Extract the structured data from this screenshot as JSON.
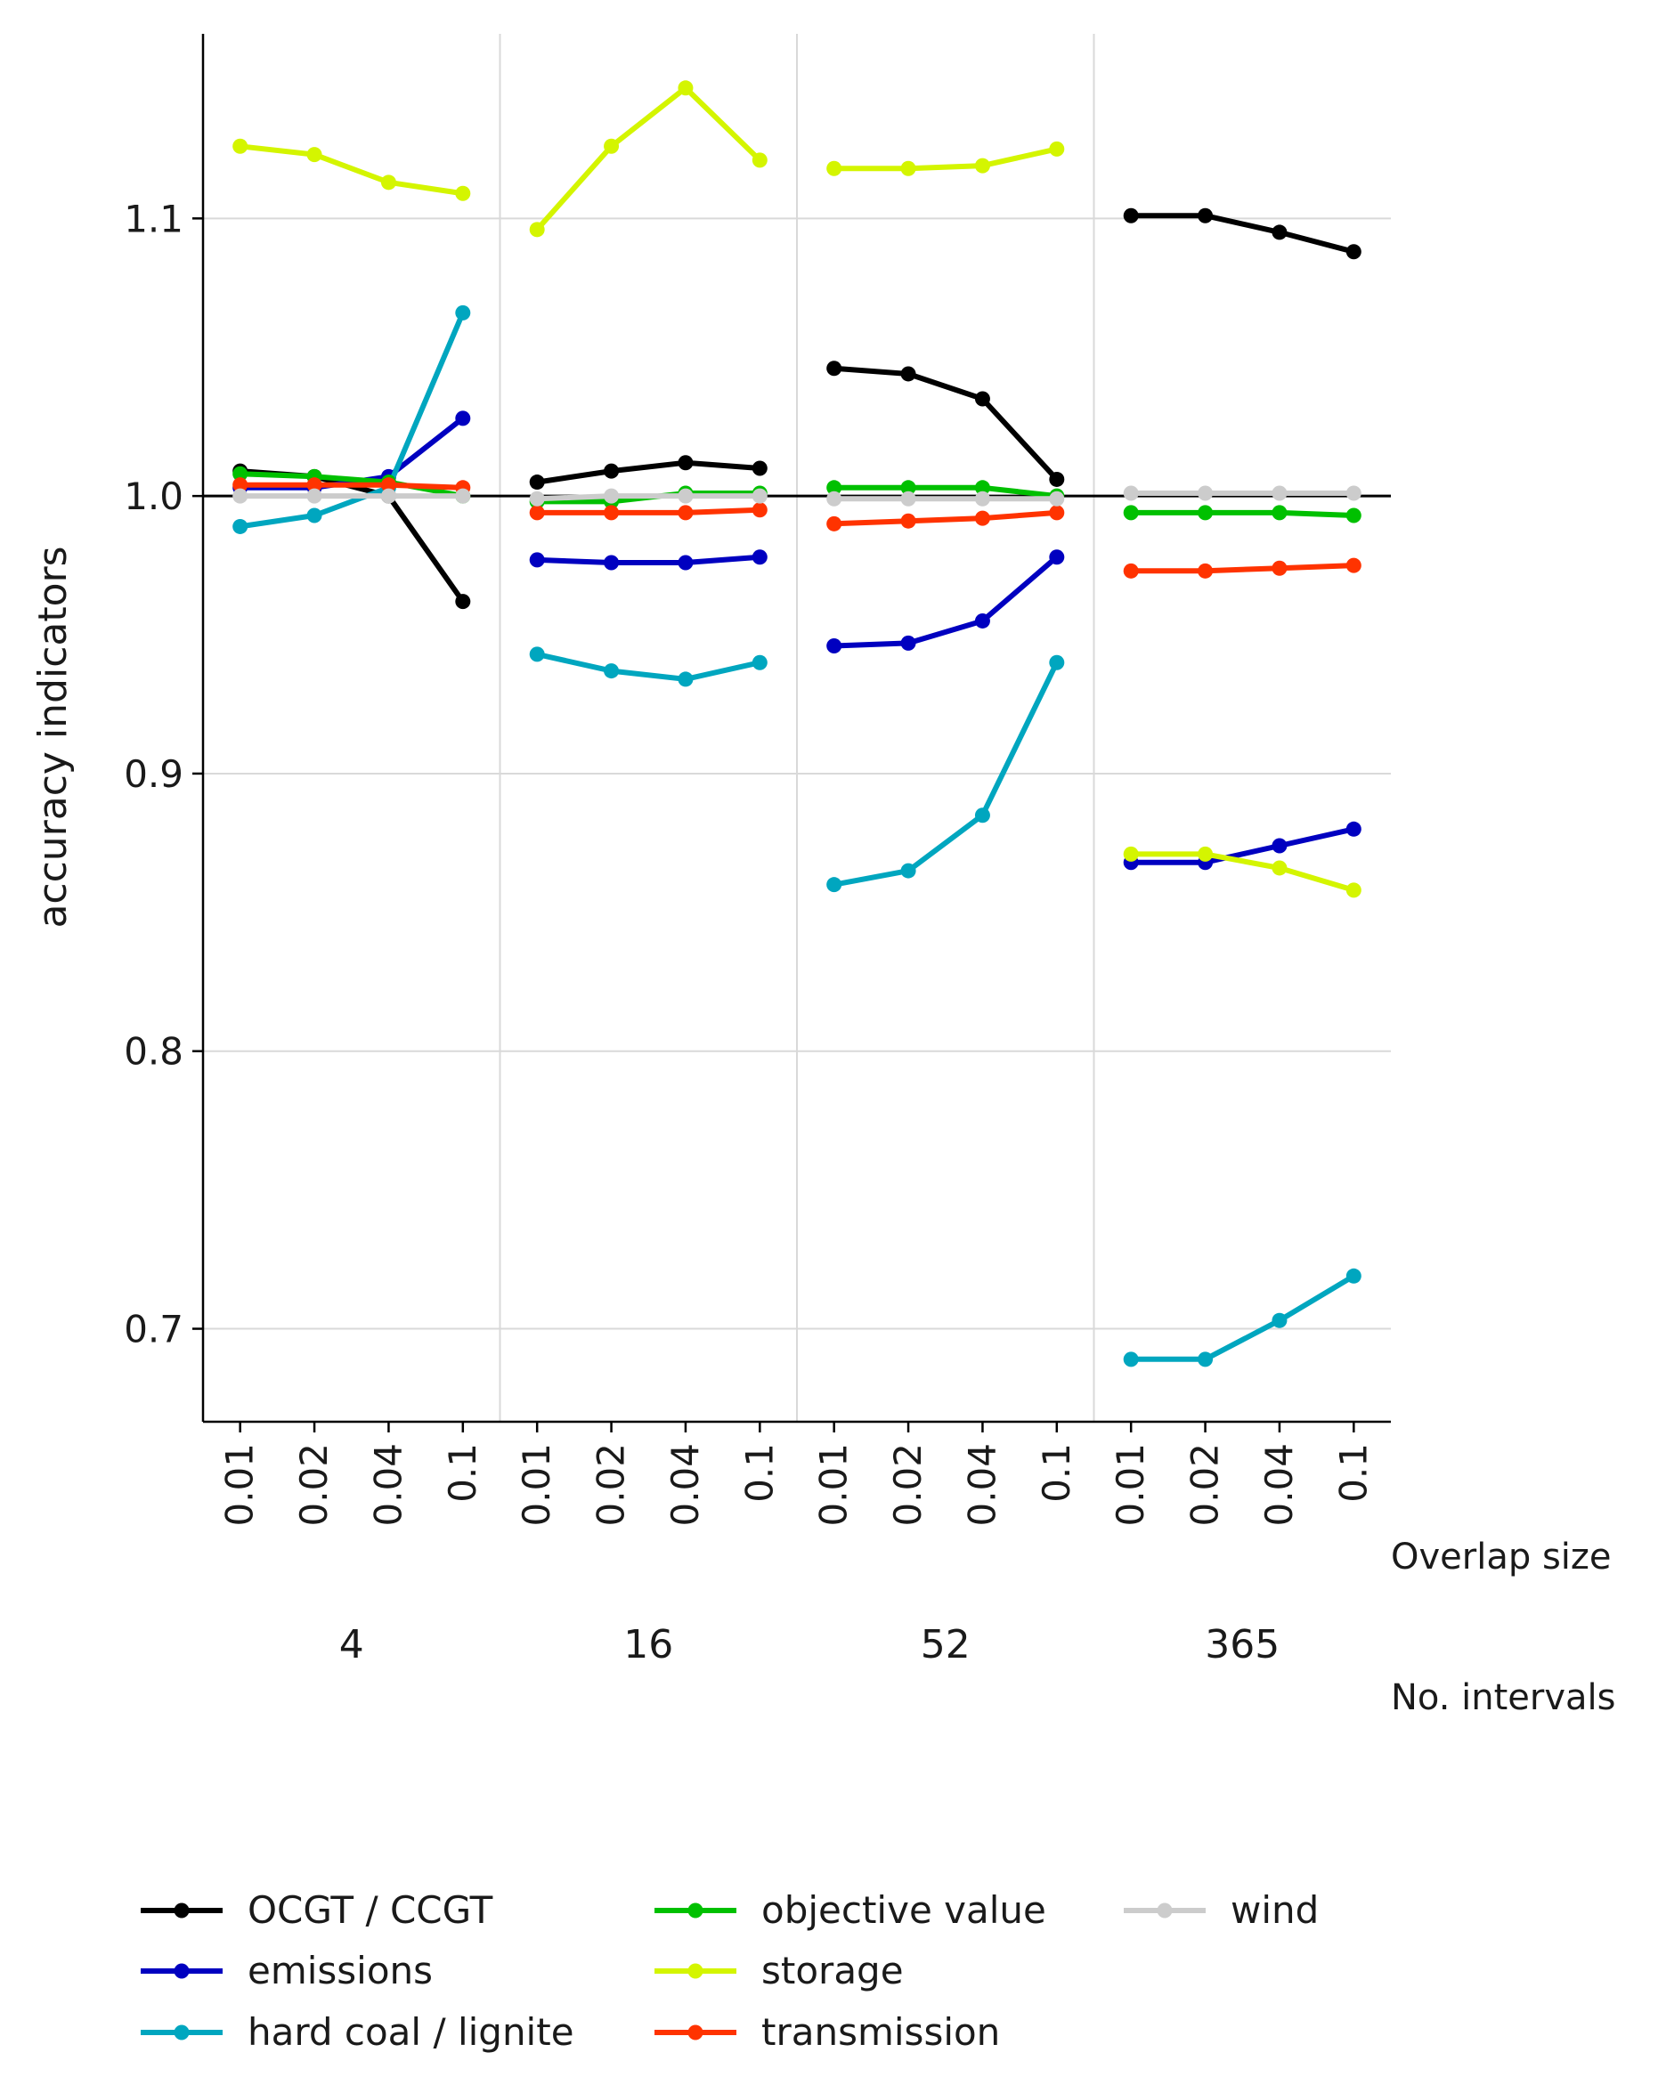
{
  "chart_data": {
    "type": "line",
    "ylabel": "accuracy indicators",
    "ylim": [
      0.6665,
      1.1665
    ],
    "yticks": [
      0.7,
      0.8,
      0.9,
      1.0,
      1.1
    ],
    "ytick_labels": [
      "0.7",
      "0.8",
      "0.9",
      "1.0",
      "1.1"
    ],
    "reference_line": 1.0,
    "grid": true,
    "overlap_labels": [
      "0.01",
      "0.02",
      "0.04",
      "0.1"
    ],
    "groups": [
      "4",
      "16",
      "52",
      "365"
    ],
    "overlap_axis_label": "Overlap size",
    "groups_axis_label": "No. intervals",
    "legend_position": "bottom",
    "series": [
      {
        "name": "OCGT / CCGT",
        "color": "#000000",
        "values": [
          [
            1.009,
            1.007,
            1.0,
            0.962
          ],
          [
            1.005,
            1.009,
            1.012,
            1.01
          ],
          [
            1.046,
            1.044,
            1.035,
            1.006
          ],
          [
            1.101,
            1.101,
            1.095,
            1.088
          ]
        ]
      },
      {
        "name": "emissions",
        "color": "#0000c0",
        "values": [
          [
            1.003,
            1.003,
            1.007,
            1.028
          ],
          [
            0.977,
            0.976,
            0.976,
            0.978
          ],
          [
            0.946,
            0.947,
            0.955,
            0.978
          ],
          [
            0.868,
            0.868,
            0.874,
            0.88
          ]
        ]
      },
      {
        "name": "hard coal / lignite",
        "color": "#00a6bf",
        "values": [
          [
            0.989,
            0.993,
            1.003,
            1.066
          ],
          [
            0.943,
            0.937,
            0.934,
            0.94
          ],
          [
            0.86,
            0.865,
            0.885,
            0.94
          ],
          [
            0.689,
            0.689,
            0.703,
            0.719
          ]
        ]
      },
      {
        "name": "objective value",
        "color": "#00c000",
        "values": [
          [
            1.008,
            1.007,
            1.005,
            1.0
          ],
          [
            0.998,
            0.998,
            1.001,
            1.001
          ],
          [
            1.003,
            1.003,
            1.003,
            1.0
          ],
          [
            0.994,
            0.994,
            0.994,
            0.993
          ]
        ]
      },
      {
        "name": "storage",
        "color": "#d4f500",
        "values": [
          [
            1.126,
            1.123,
            1.113,
            1.109
          ],
          [
            1.096,
            1.126,
            1.147,
            1.121
          ],
          [
            1.118,
            1.118,
            1.119,
            1.125
          ],
          [
            0.871,
            0.871,
            0.866,
            0.858
          ]
        ]
      },
      {
        "name": "transmission",
        "color": "#ff3300",
        "values": [
          [
            1.004,
            1.004,
            1.004,
            1.003
          ],
          [
            0.994,
            0.994,
            0.994,
            0.995
          ],
          [
            0.99,
            0.991,
            0.992,
            0.994
          ],
          [
            0.973,
            0.973,
            0.974,
            0.975
          ]
        ]
      },
      {
        "name": "wind",
        "color": "#cccccc",
        "values": [
          [
            1.0,
            1.0,
            1.0,
            1.0
          ],
          [
            0.999,
            1.0,
            1.0,
            1.0
          ],
          [
            0.999,
            0.999,
            0.999,
            0.999
          ],
          [
            1.001,
            1.001,
            1.001,
            1.001
          ]
        ]
      }
    ]
  }
}
